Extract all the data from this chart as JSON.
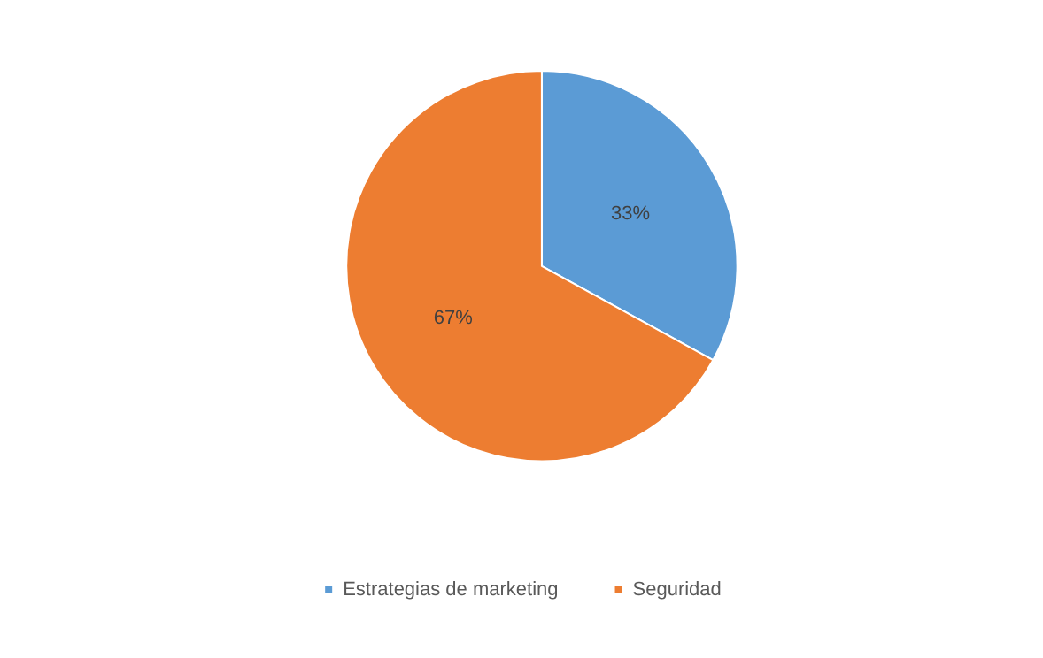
{
  "chart_data": {
    "type": "pie",
    "categories": [
      "Estrategias de marketing",
      "Seguridad"
    ],
    "values": [
      33,
      67
    ],
    "colors": [
      "#5b9bd5",
      "#ed7d31"
    ],
    "value_labels": [
      "33%",
      "67%"
    ],
    "legend": "bottom"
  }
}
